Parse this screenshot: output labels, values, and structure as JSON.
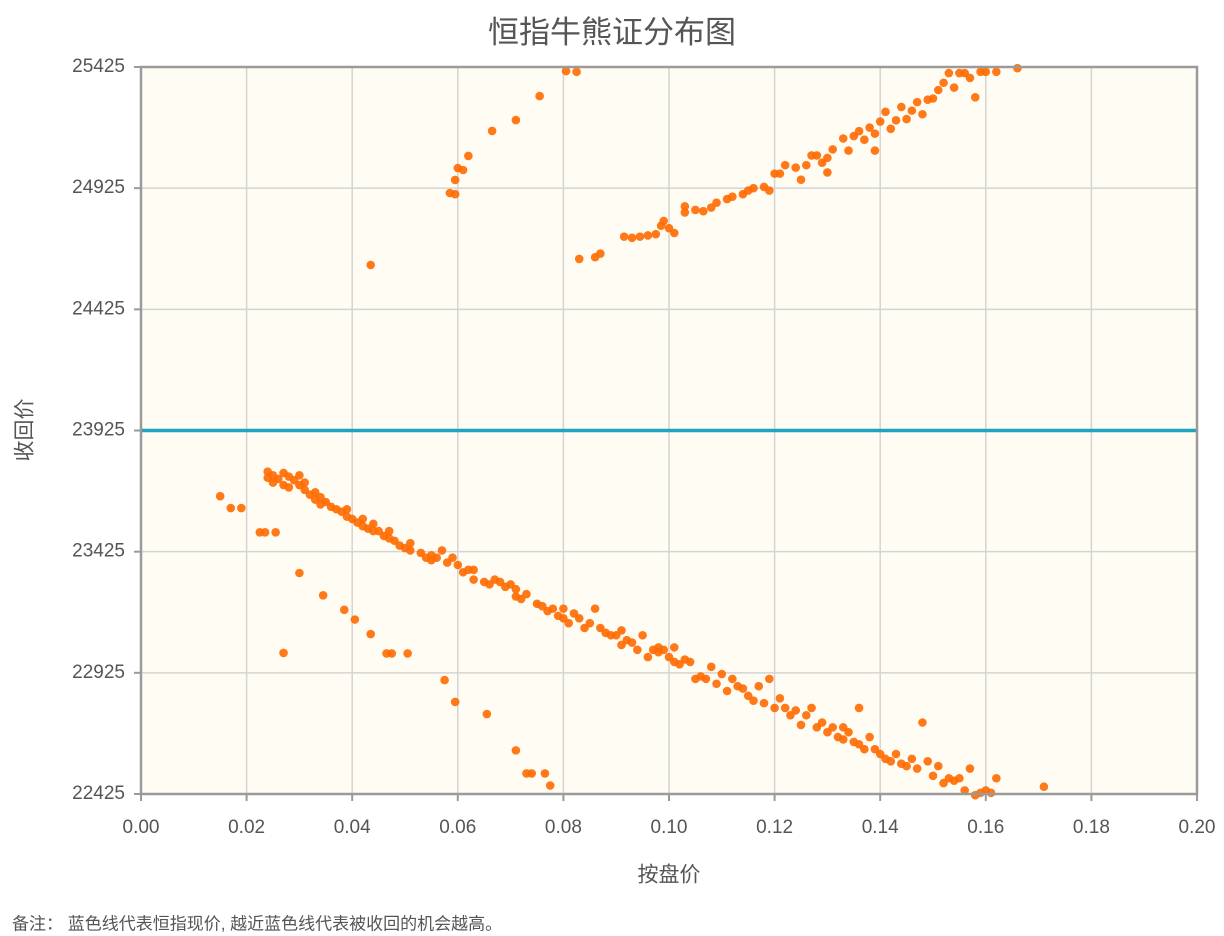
{
  "chart_data": {
    "type": "scatter",
    "title": "恒指牛熊证分布图",
    "x_label": "按盘价",
    "y_label": "收回价",
    "note": "备注： 蓝色线代表恒指现价, 越近蓝色线代表被收回的机会越高。",
    "color": "#ff6a00",
    "reference_line": {
      "value": 23925,
      "color": "#1fa3c2"
    },
    "xlim": [
      0,
      0.2
    ],
    "ylim": [
      22425,
      25425
    ],
    "xticks": [
      {
        "value": 0,
        "label": "0.00"
      },
      {
        "value": 0.02,
        "label": "0.02"
      },
      {
        "value": 0.04,
        "label": "0.04"
      },
      {
        "value": 0.06,
        "label": "0.06"
      },
      {
        "value": 0.08,
        "label": "0.08"
      },
      {
        "value": 0.1,
        "label": "0.10"
      },
      {
        "value": 0.12,
        "label": "0.12"
      },
      {
        "value": 0.14,
        "label": "0.14"
      },
      {
        "value": 0.16,
        "label": "0.16"
      },
      {
        "value": 0.18,
        "label": "0.18"
      },
      {
        "value": 0.2,
        "label": "0.20"
      }
    ],
    "yticks": [
      22425,
      22925,
      23425,
      23925,
      24425,
      24925,
      25425
    ],
    "grid": true,
    "x": [
      0.0435,
      0.0585,
      0.0595,
      0.0595,
      0.06,
      0.061,
      0.062,
      0.0665,
      0.071,
      0.0755,
      0.0805,
      0.0825,
      0.083,
      0.086,
      0.087,
      0.0915,
      0.093,
      0.0945,
      0.096,
      0.0975,
      0.0985,
      0.099,
      0.1,
      0.101,
      0.103,
      0.103,
      0.105,
      0.1065,
      0.108,
      0.109,
      0.111,
      0.112,
      0.114,
      0.115,
      0.116,
      0.118,
      0.119,
      0.12,
      0.121,
      0.122,
      0.124,
      0.125,
      0.126,
      0.127,
      0.128,
      0.129,
      0.13,
      0.13,
      0.131,
      0.133,
      0.134,
      0.135,
      0.136,
      0.137,
      0.138,
      0.139,
      0.139,
      0.14,
      0.141,
      0.142,
      0.143,
      0.144,
      0.145,
      0.146,
      0.147,
      0.148,
      0.149,
      0.15,
      0.151,
      0.152,
      0.153,
      0.154,
      0.155,
      0.156,
      0.157,
      0.158,
      0.159,
      0.16,
      0.162,
      0.166,
      0.015,
      0.017,
      0.019,
      0.0225,
      0.0235,
      0.0255,
      0.027,
      0.03,
      0.0345,
      0.0385,
      0.0405,
      0.0435,
      0.0465,
      0.0475,
      0.0505,
      0.0575,
      0.0595,
      0.0655,
      0.071,
      0.073,
      0.074,
      0.0765,
      0.0775,
      0.024,
      0.024,
      0.025,
      0.025,
      0.026,
      0.027,
      0.027,
      0.028,
      0.028,
      0.029,
      0.03,
      0.03,
      0.031,
      0.031,
      0.032,
      0.033,
      0.033,
      0.034,
      0.034,
      0.035,
      0.036,
      0.037,
      0.038,
      0.039,
      0.039,
      0.04,
      0.041,
      0.042,
      0.042,
      0.043,
      0.044,
      0.044,
      0.045,
      0.046,
      0.047,
      0.047,
      0.048,
      0.049,
      0.05,
      0.051,
      0.051,
      0.053,
      0.054,
      0.055,
      0.055,
      0.056,
      0.057,
      0.058,
      0.059,
      0.06,
      0.061,
      0.062,
      0.063,
      0.063,
      0.065,
      0.066,
      0.067,
      0.068,
      0.069,
      0.07,
      0.071,
      0.071,
      0.072,
      0.073,
      0.075,
      0.076,
      0.077,
      0.078,
      0.079,
      0.08,
      0.08,
      0.081,
      0.082,
      0.083,
      0.084,
      0.085,
      0.086,
      0.087,
      0.088,
      0.089,
      0.09,
      0.091,
      0.091,
      0.092,
      0.093,
      0.094,
      0.095,
      0.096,
      0.097,
      0.098,
      0.098,
      0.099,
      0.1,
      0.101,
      0.101,
      0.102,
      0.103,
      0.104,
      0.105,
      0.106,
      0.107,
      0.108,
      0.109,
      0.11,
      0.111,
      0.112,
      0.113,
      0.114,
      0.115,
      0.116,
      0.117,
      0.118,
      0.119,
      0.12,
      0.121,
      0.122,
      0.123,
      0.124,
      0.125,
      0.126,
      0.127,
      0.128,
      0.129,
      0.13,
      0.131,
      0.132,
      0.133,
      0.133,
      0.134,
      0.135,
      0.136,
      0.136,
      0.137,
      0.138,
      0.139,
      0.14,
      0.141,
      0.142,
      0.143,
      0.144,
      0.145,
      0.146,
      0.147,
      0.148,
      0.149,
      0.15,
      0.151,
      0.152,
      0.153,
      0.154,
      0.155,
      0.156,
      0.157,
      0.158,
      0.159,
      0.16,
      0.161,
      0.162,
      0.171
    ],
    "values": [
      24608,
      24905,
      24900,
      24959,
      25008,
      25000,
      25058,
      25161,
      25206,
      25305,
      25408,
      25405,
      24633,
      24640,
      24655,
      24725,
      24720,
      24725,
      24730,
      24735,
      24770,
      24790,
      24760,
      24740,
      24825,
      24850,
      24835,
      24830,
      24845,
      24865,
      24880,
      24890,
      24900,
      24915,
      24925,
      24930,
      24915,
      24985,
      24985,
      25020,
      25010,
      24960,
      25020,
      25060,
      25060,
      25030,
      25050,
      24990,
      25085,
      25130,
      25080,
      25140,
      25160,
      25125,
      25175,
      25150,
      25080,
      25200,
      25240,
      25170,
      25205,
      25260,
      25210,
      25245,
      25280,
      25230,
      25290,
      25295,
      25330,
      25360,
      25400,
      25340,
      25400,
      25400,
      25380,
      25300,
      25405,
      25405,
      25405,
      25420,
      23654,
      23605,
      23605,
      23505,
      23505,
      23505,
      23007,
      23337,
      23245,
      23185,
      23145,
      23085,
      23005,
      23005,
      23005,
      22895,
      22805,
      22755,
      22605,
      22510,
      22510,
      22510,
      22460,
      23755,
      23730,
      23740,
      23710,
      23725,
      23750,
      23700,
      23735,
      23690,
      23720,
      23700,
      23740,
      23680,
      23710,
      23660,
      23640,
      23670,
      23650,
      23620,
      23630,
      23610,
      23600,
      23590,
      23570,
      23600,
      23560,
      23545,
      23530,
      23560,
      23520,
      23510,
      23540,
      23510,
      23490,
      23480,
      23510,
      23470,
      23450,
      23440,
      23430,
      23460,
      23420,
      23400,
      23390,
      23410,
      23400,
      23430,
      23380,
      23400,
      23370,
      23340,
      23350,
      23310,
      23350,
      23300,
      23290,
      23310,
      23300,
      23280,
      23290,
      23270,
      23240,
      23230,
      23250,
      23210,
      23200,
      23180,
      23190,
      23160,
      23150,
      23190,
      23130,
      23170,
      23150,
      23110,
      23130,
      23190,
      23110,
      23090,
      23080,
      23080,
      23100,
      23040,
      23060,
      23050,
      23020,
      23080,
      22990,
      23020,
      23010,
      23030,
      23020,
      22990,
      22970,
      23030,
      22960,
      22980,
      22970,
      22900,
      22910,
      22900,
      22950,
      22880,
      22920,
      22850,
      22900,
      22870,
      22860,
      22830,
      22810,
      22870,
      22800,
      22900,
      22780,
      22820,
      22780,
      22750,
      22770,
      22710,
      22750,
      22780,
      22700,
      22720,
      22680,
      22700,
      22660,
      22700,
      22650,
      22680,
      22640,
      22630,
      22780,
      22610,
      22660,
      22610,
      22590,
      22570,
      22560,
      22590,
      22550,
      22540,
      22570,
      22530,
      22720,
      22560,
      22500,
      22540,
      22470,
      22490,
      22480,
      22490,
      22440,
      22530,
      22420,
      22430,
      22440,
      22430,
      22490,
      22455
    ]
  }
}
